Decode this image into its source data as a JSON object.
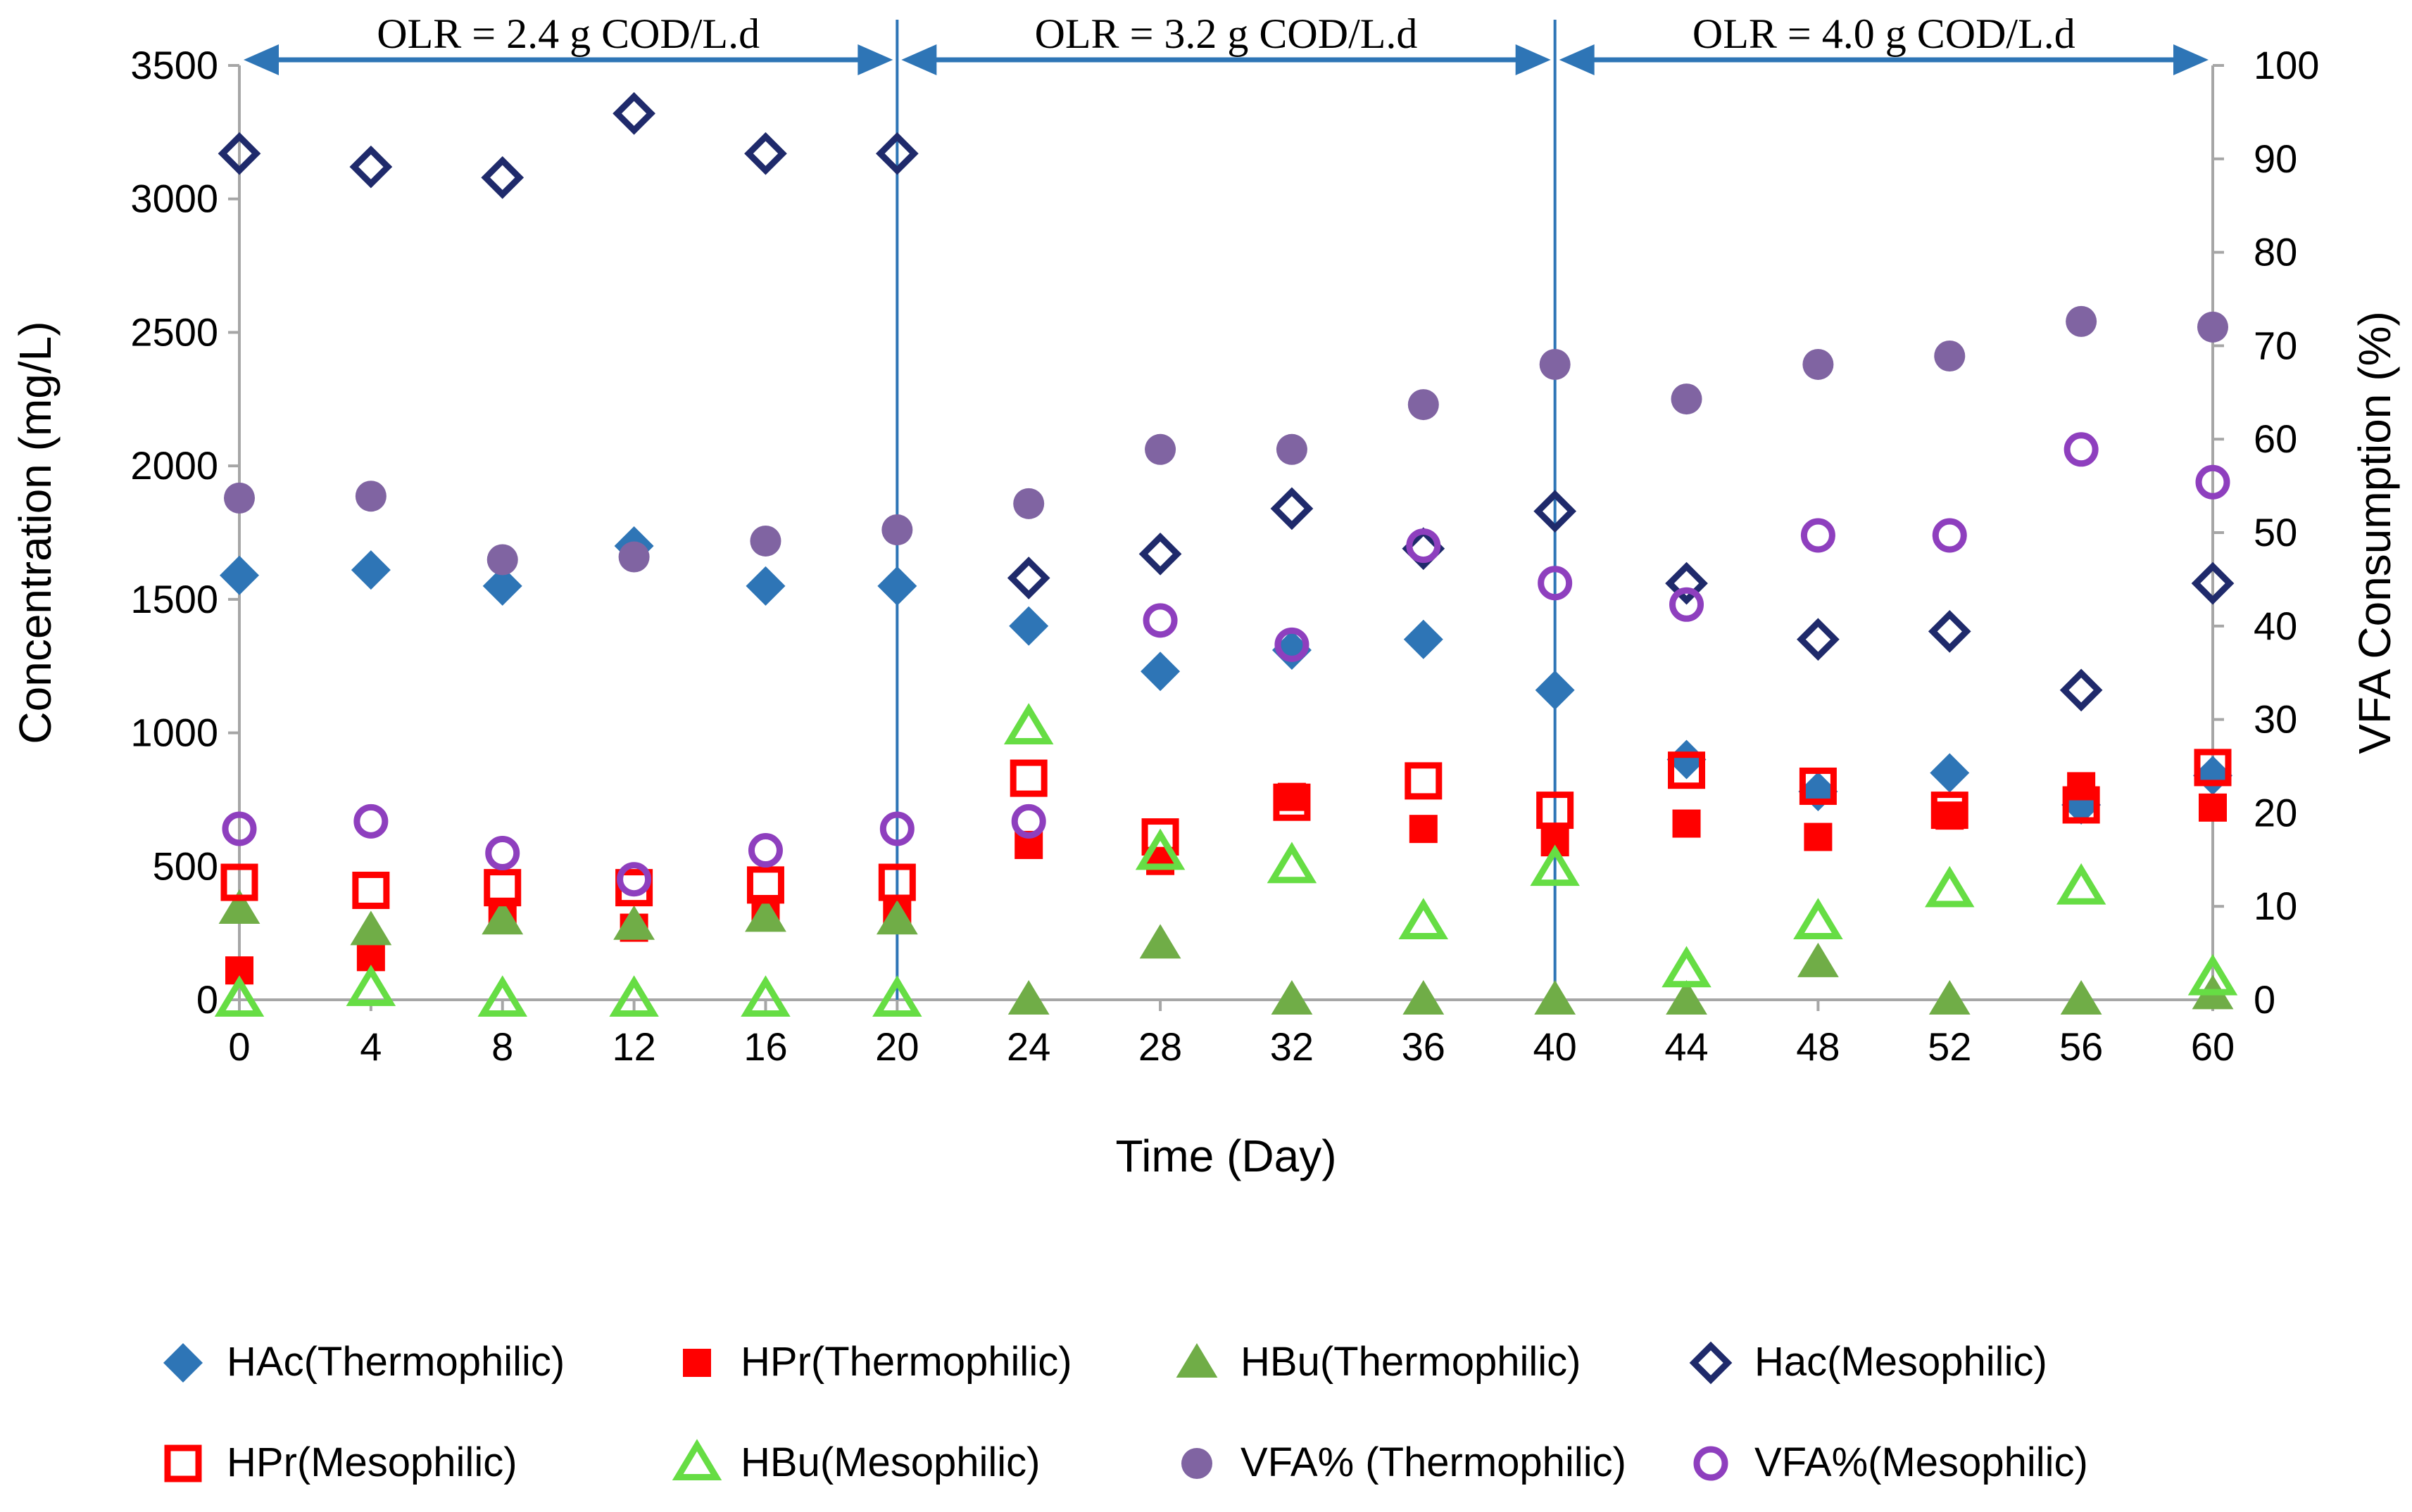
{
  "chart_data": {
    "type": "scatter",
    "xlabel": "Time  (Day)",
    "ylabel": "Concentration (mg/L)",
    "y2label": "VFA Consumption (%)",
    "xlim": [
      0,
      60
    ],
    "ylim": [
      0,
      3500
    ],
    "y2lim": [
      0,
      100
    ],
    "x_ticks": [
      0,
      4,
      8,
      12,
      16,
      20,
      24,
      28,
      32,
      36,
      40,
      44,
      48,
      52,
      56,
      60
    ],
    "y_ticks": [
      0,
      500,
      1000,
      1500,
      2000,
      2500,
      3000,
      3500
    ],
    "y2_ticks": [
      0,
      10,
      20,
      30,
      40,
      50,
      60,
      70,
      80,
      90,
      100
    ],
    "grid": false,
    "legend_position": "bottom",
    "dividers": [
      20,
      40
    ],
    "phases": [
      {
        "label": "OLR = 2.4 g COD/L.d",
        "from": 0,
        "to": 20
      },
      {
        "label": "OLR = 3.2 g COD/L.d",
        "from": 20,
        "to": 40
      },
      {
        "label": "OLR = 4.0 g COD/L.d",
        "from": 40,
        "to": 60
      }
    ],
    "series": [
      {
        "name": "HAc(Thermophilic)",
        "axis": "left",
        "marker": "diamond",
        "filled": true,
        "color": "#2E75B6",
        "x": [
          0,
          4,
          8,
          12,
          16,
          20,
          24,
          28,
          32,
          36,
          40,
          44,
          48,
          52,
          56,
          60
        ],
        "y": [
          1590,
          1610,
          1550,
          1700,
          1550,
          1550,
          1400,
          1230,
          1310,
          1350,
          1160,
          900,
          780,
          850,
          730,
          840
        ]
      },
      {
        "name": "HPr(Thermophilic)",
        "axis": "left",
        "marker": "square",
        "filled": true,
        "color": "#FF0000",
        "x": [
          0,
          4,
          8,
          12,
          16,
          20,
          24,
          28,
          32,
          36,
          40,
          44,
          48,
          52,
          56,
          60
        ],
        "y": [
          110,
          160,
          330,
          270,
          340,
          330,
          580,
          520,
          760,
          640,
          590,
          660,
          610,
          690,
          800,
          720
        ]
      },
      {
        "name": "HBu(Thermophilic)",
        "axis": "left",
        "marker": "triangle",
        "filled": true,
        "color": "#70AD47",
        "x": [
          0,
          4,
          8,
          12,
          16,
          20,
          24,
          28,
          32,
          36,
          40,
          44,
          48,
          52,
          56,
          60
        ],
        "y": [
          340,
          260,
          300,
          280,
          310,
          300,
          0,
          210,
          0,
          0,
          0,
          0,
          140,
          0,
          0,
          20
        ]
      },
      {
        "name": "Hac(Mesophilic)",
        "axis": "left",
        "marker": "diamond",
        "filled": false,
        "color": "#1F2A6B",
        "x": [
          0,
          4,
          8,
          12,
          16,
          20,
          24,
          28,
          32,
          36,
          40,
          44,
          48,
          52,
          56,
          60
        ],
        "y": [
          3170,
          3120,
          3080,
          3320,
          3170,
          3170,
          1580,
          1670,
          1840,
          1690,
          1830,
          1560,
          1350,
          1380,
          1160,
          1560
        ]
      },
      {
        "name": "HPr(Mesophilic)",
        "axis": "left",
        "marker": "square",
        "filled": false,
        "color": "#FF0000",
        "x": [
          0,
          4,
          8,
          12,
          16,
          20,
          24,
          28,
          32,
          36,
          40,
          44,
          48,
          52,
          56,
          60
        ],
        "y": [
          440,
          410,
          420,
          420,
          430,
          440,
          830,
          610,
          740,
          820,
          710,
          860,
          800,
          710,
          730,
          870
        ]
      },
      {
        "name": "HBu(Mesophilic)",
        "axis": "left",
        "marker": "triangle",
        "filled": false,
        "color": "#66DD44",
        "x": [
          0,
          4,
          8,
          12,
          16,
          20,
          24,
          28,
          32,
          36,
          40,
          44,
          48,
          52,
          56,
          60
        ],
        "y": [
          0,
          40,
          0,
          0,
          0,
          0,
          1020,
          550,
          500,
          290,
          490,
          110,
          290,
          410,
          420,
          80
        ]
      },
      {
        "name": "VFA% (Thermophilic)",
        "axis": "right",
        "marker": "circle",
        "filled": true,
        "color": "#8064A2",
        "x": [
          0,
          4,
          8,
          12,
          16,
          20,
          24,
          28,
          32,
          36,
          40,
          44,
          48,
          52,
          56,
          60
        ],
        "y": [
          53.7,
          53.9,
          47.1,
          47.4,
          49.1,
          50.3,
          53.1,
          58.9,
          58.9,
          63.7,
          68.0,
          64.3,
          68.0,
          68.9,
          72.6,
          72.0
        ]
      },
      {
        "name": "VFA%(Mesophilic)",
        "axis": "right",
        "marker": "circle",
        "filled": false,
        "color": "#8E3FBE",
        "x": [
          0,
          4,
          8,
          12,
          16,
          20,
          24,
          28,
          32,
          36,
          40,
          44,
          48,
          52,
          56,
          60
        ],
        "y": [
          18.3,
          19.1,
          15.7,
          12.9,
          16.0,
          18.3,
          19.1,
          40.6,
          38.0,
          48.6,
          44.6,
          42.3,
          49.7,
          49.7,
          58.9,
          55.4
        ]
      }
    ]
  }
}
